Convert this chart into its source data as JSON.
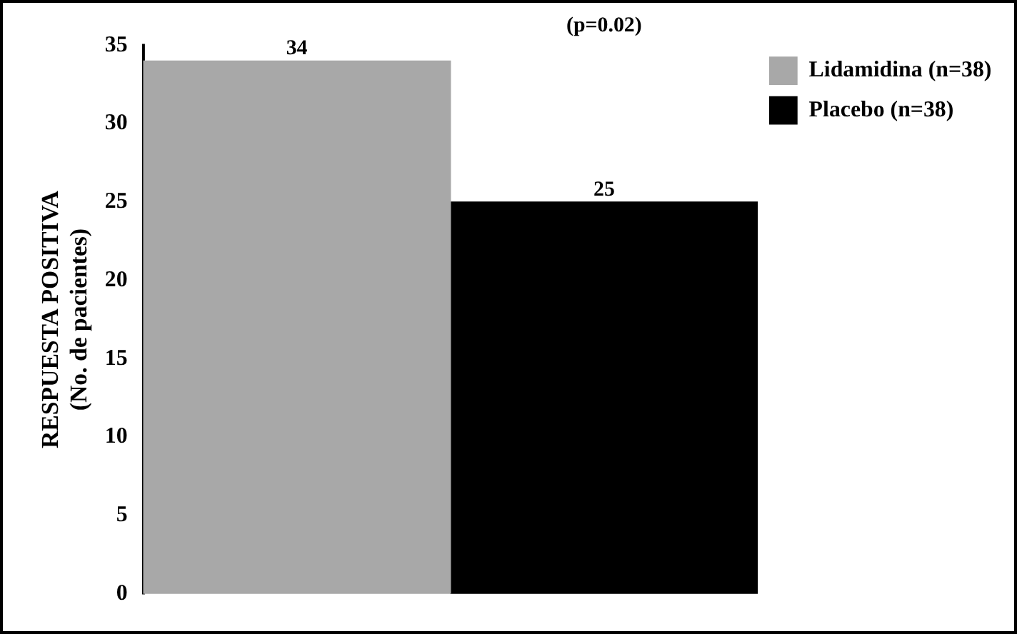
{
  "chart_data": {
    "type": "bar",
    "ylabel": "RESPUESTA POSITIVA\n(No. de pacientes)",
    "categories": [
      null
    ],
    "series": [
      {
        "name": "Lidamidina (n=38)",
        "color": "#a8a8a8",
        "values": [
          34
        ]
      },
      {
        "name": "Placebo (n=38)",
        "color": "#000000",
        "values": [
          25
        ]
      }
    ],
    "ylim": [
      0,
      35
    ],
    "yticks": [
      0,
      5,
      10,
      15,
      20,
      25,
      30,
      35
    ],
    "grid": false,
    "legend": "right",
    "data_labels": true,
    "annotations": [
      "(p=0.02)"
    ]
  }
}
